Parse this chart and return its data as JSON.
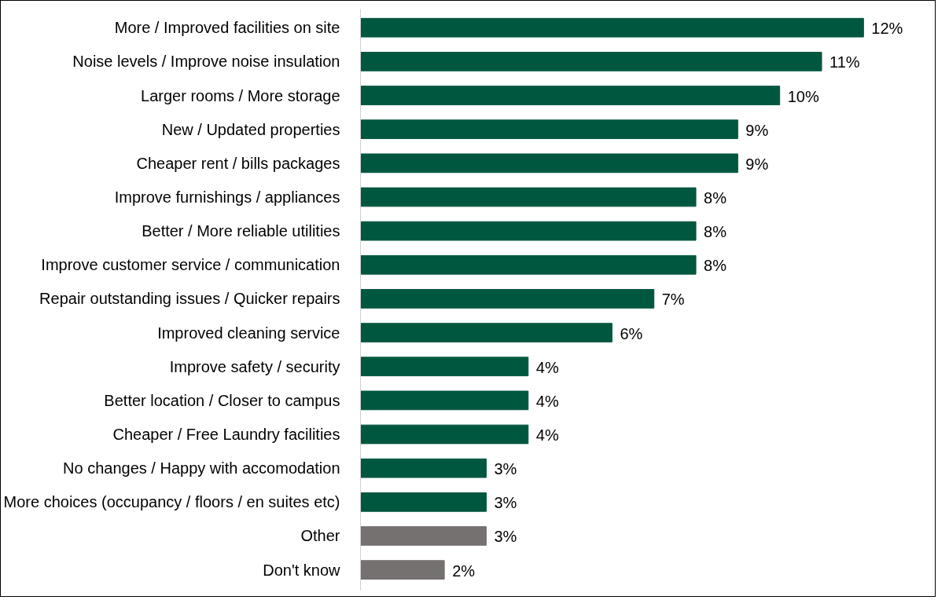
{
  "chart_data": {
    "type": "bar",
    "orientation": "horizontal",
    "categories": [
      "More / Improved facilities on site",
      "Noise levels / Improve noise insulation",
      "Larger rooms / More storage",
      "New / Updated properties",
      "Cheaper rent / bills packages",
      "Improve furnishings / appliances",
      "Better / More reliable utilities",
      "Improve customer service / communication",
      "Repair outstanding issues / Quicker repairs",
      "Improved cleaning service",
      "Improve safety / security",
      "Better location / Closer to campus",
      "Cheaper / Free Laundry facilities",
      "No changes / Happy with accomodation",
      "More choices (occupancy / floors / en suites etc)",
      "Other",
      "Don't know"
    ],
    "values": [
      12,
      11,
      10,
      9,
      9,
      8,
      8,
      8,
      7,
      6,
      4,
      4,
      4,
      3,
      3,
      3,
      2
    ],
    "value_labels": [
      "12%",
      "11%",
      "10%",
      "9%",
      "9%",
      "8%",
      "8%",
      "8%",
      "7%",
      "6%",
      "4%",
      "4%",
      "4%",
      "3%",
      "3%",
      "3%",
      "2%"
    ],
    "colors": [
      "#00573f",
      "#00573f",
      "#00573f",
      "#00573f",
      "#00573f",
      "#00573f",
      "#00573f",
      "#00573f",
      "#00573f",
      "#00573f",
      "#00573f",
      "#00573f",
      "#00573f",
      "#00573f",
      "#00573f",
      "#767171",
      "#767171"
    ],
    "grid": false
  }
}
